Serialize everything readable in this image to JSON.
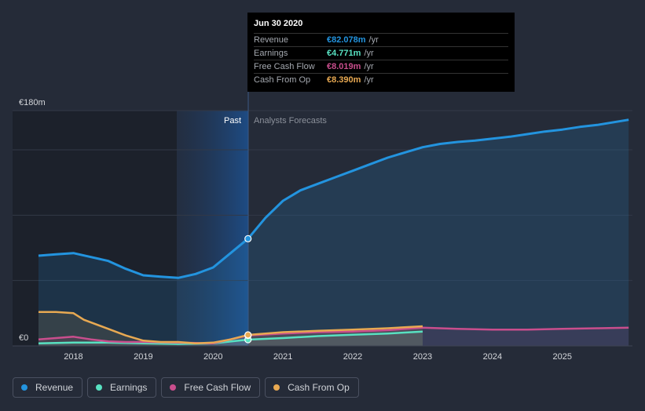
{
  "chart_data": {
    "type": "area",
    "title": "",
    "currency_labels": {
      "ymax": "€180m",
      "ymin": "€0"
    },
    "ylim": [
      0,
      180
    ],
    "xlim": [
      2017.5,
      2025.95
    ],
    "x_ticks": [
      "2018",
      "2019",
      "2020",
      "2021",
      "2022",
      "2023",
      "2024",
      "2025"
    ],
    "regions": {
      "past_label": "Past",
      "forecast_label": "Analysts Forecasts",
      "divider_x": 2020.5
    },
    "series": [
      {
        "name": "Revenue",
        "color": "#2394df",
        "x": [
          2017.5,
          2017.75,
          2018.0,
          2018.25,
          2018.5,
          2018.75,
          2019.0,
          2019.25,
          2019.5,
          2019.75,
          2020.0,
          2020.25,
          2020.5,
          2020.75,
          2021.0,
          2021.25,
          2021.5,
          2021.75,
          2022.0,
          2022.25,
          2022.5,
          2022.75,
          2023.0,
          2023.25,
          2023.5,
          2023.75,
          2024.0,
          2024.25,
          2024.5,
          2024.75,
          2025.0,
          2025.25,
          2025.5,
          2025.95
        ],
        "values": [
          69,
          70,
          71,
          68,
          65,
          59,
          54,
          53,
          52,
          55,
          60,
          71,
          82,
          98,
          111,
          119,
          124,
          129,
          134,
          139,
          144,
          148,
          152,
          154.5,
          156,
          157,
          158.5,
          160,
          162,
          164,
          165.5,
          167.5,
          169,
          173
        ]
      },
      {
        "name": "Earnings",
        "color": "#58e1c1",
        "x": [
          2017.5,
          2018.0,
          2018.5,
          2019.0,
          2019.5,
          2020.0,
          2020.5,
          2021.0,
          2021.5,
          2022.0,
          2022.5,
          2023.0
        ],
        "values": [
          2,
          2.5,
          2.5,
          2,
          1.5,
          2,
          4.771,
          6,
          7.5,
          8.5,
          9.5,
          11
        ]
      },
      {
        "name": "Free Cash Flow",
        "color": "#c94e8d",
        "x": [
          2017.5,
          2017.75,
          2018.0,
          2018.25,
          2018.5,
          2018.75,
          2019.0,
          2019.5,
          2020.0,
          2020.5,
          2021.0,
          2021.5,
          2022.0,
          2022.5,
          2023.0,
          2023.5,
          2024.0,
          2024.5,
          2025.0,
          2025.5,
          2025.95
        ],
        "values": [
          5,
          6,
          7,
          5,
          3.5,
          3,
          3,
          2.5,
          2,
          8.019,
          9.5,
          10.5,
          11,
          12,
          14,
          13,
          12.5,
          12.5,
          13,
          13.5,
          14
        ]
      },
      {
        "name": "Cash From Op",
        "color": "#e8a952",
        "x": [
          2017.5,
          2017.75,
          2018.0,
          2018.15,
          2018.5,
          2018.75,
          2019.0,
          2019.25,
          2019.5,
          2019.75,
          2020.0,
          2020.25,
          2020.5,
          2021.0,
          2021.5,
          2022.0,
          2022.5,
          2023.0
        ],
        "values": [
          26,
          26,
          25,
          20,
          13,
          8,
          4,
          3,
          3,
          2,
          2.5,
          5,
          8.39,
          10.5,
          11.5,
          12.5,
          13.5,
          15
        ]
      }
    ],
    "highlight": {
      "x": 2020.5
    }
  },
  "tooltip": {
    "date": "Jun 30 2020",
    "rows": [
      {
        "label": "Revenue",
        "value": "€82.078m",
        "unit": "/yr",
        "color": "#2394df"
      },
      {
        "label": "Earnings",
        "value": "€4.771m",
        "unit": "/yr",
        "color": "#58e1c1"
      },
      {
        "label": "Free Cash Flow",
        "value": "€8.019m",
        "unit": "/yr",
        "color": "#c94e8d"
      },
      {
        "label": "Cash From Op",
        "value": "€8.390m",
        "unit": "/yr",
        "color": "#e8a952"
      }
    ]
  },
  "legend": [
    {
      "label": "Revenue",
      "color": "#2394df"
    },
    {
      "label": "Earnings",
      "color": "#58e1c1"
    },
    {
      "label": "Free Cash Flow",
      "color": "#c94e8d"
    },
    {
      "label": "Cash From Op",
      "color": "#e8a952"
    }
  ]
}
